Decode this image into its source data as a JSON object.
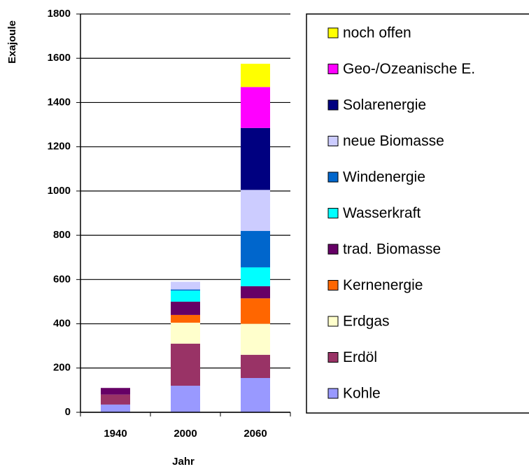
{
  "chart_data": {
    "type": "stacked_bar",
    "y_label": "Exajoule",
    "x_label": "Jahr",
    "categories": [
      "1940",
      "2000",
      "2060"
    ],
    "series": [
      {
        "name": "Kohle",
        "color": "#9999ff",
        "values": [
          35,
          120,
          155
        ]
      },
      {
        "name": "Erdöl",
        "color": "#993366",
        "values": [
          45,
          190,
          105
        ]
      },
      {
        "name": "Erdgas",
        "color": "#ffffcc",
        "values": [
          0,
          95,
          140
        ]
      },
      {
        "name": "Kernenergie",
        "color": "#ff6600",
        "values": [
          0,
          35,
          115
        ]
      },
      {
        "name": "trad. Biomasse",
        "color": "#660066",
        "values": [
          30,
          60,
          55
        ]
      },
      {
        "name": "Wasserkraft",
        "color": "#00ffff",
        "values": [
          0,
          50,
          85
        ]
      },
      {
        "name": "Windenergie",
        "color": "#0066cc",
        "values": [
          0,
          5,
          165
        ]
      },
      {
        "name": "neue Biomasse",
        "color": "#ccccff",
        "values": [
          0,
          35,
          185
        ]
      },
      {
        "name": "Solarenergie",
        "color": "#000080",
        "values": [
          0,
          0,
          280
        ]
      },
      {
        "name": "Geo-/Ozeanische E.",
        "color": "#ff00ff",
        "values": [
          0,
          0,
          185
        ]
      },
      {
        "name": "noch offen",
        "color": "#ffff00",
        "values": [
          0,
          0,
          105
        ]
      }
    ],
    "ylim": [
      0,
      1800
    ],
    "yticks": [
      0,
      200,
      400,
      600,
      800,
      1000,
      1200,
      1400,
      1600,
      1800
    ],
    "grid": true,
    "legend": "right"
  }
}
